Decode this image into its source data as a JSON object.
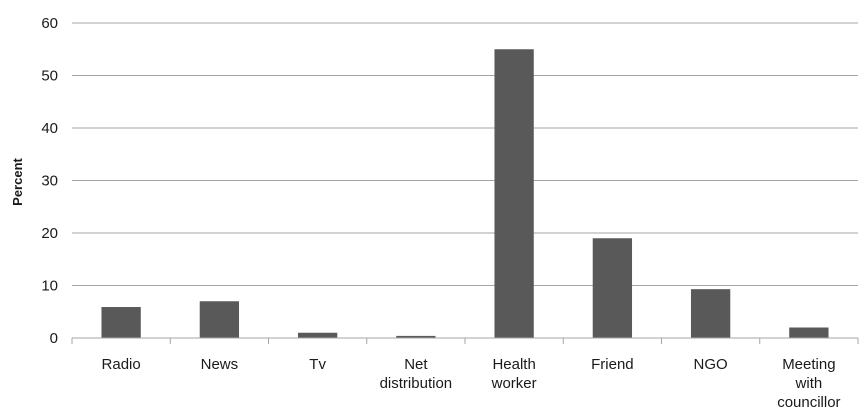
{
  "chart_data": {
    "type": "bar",
    "title": "",
    "xlabel": "",
    "ylabel": "Percent",
    "ylim": [
      0,
      60
    ],
    "yticks": [
      0,
      10,
      20,
      30,
      40,
      50,
      60
    ],
    "grid": true,
    "legend": "none",
    "bar_color": "#595959",
    "categories": [
      [
        "Radio"
      ],
      [
        "News"
      ],
      [
        "Tv"
      ],
      [
        "Net",
        "distribution"
      ],
      [
        "Health",
        "worker"
      ],
      [
        "Friend"
      ],
      [
        "NGO"
      ],
      [
        "Meeting",
        "with",
        "councillor"
      ]
    ],
    "values": [
      5.9,
      7,
      1,
      0.4,
      55,
      19,
      9.3,
      2
    ]
  }
}
